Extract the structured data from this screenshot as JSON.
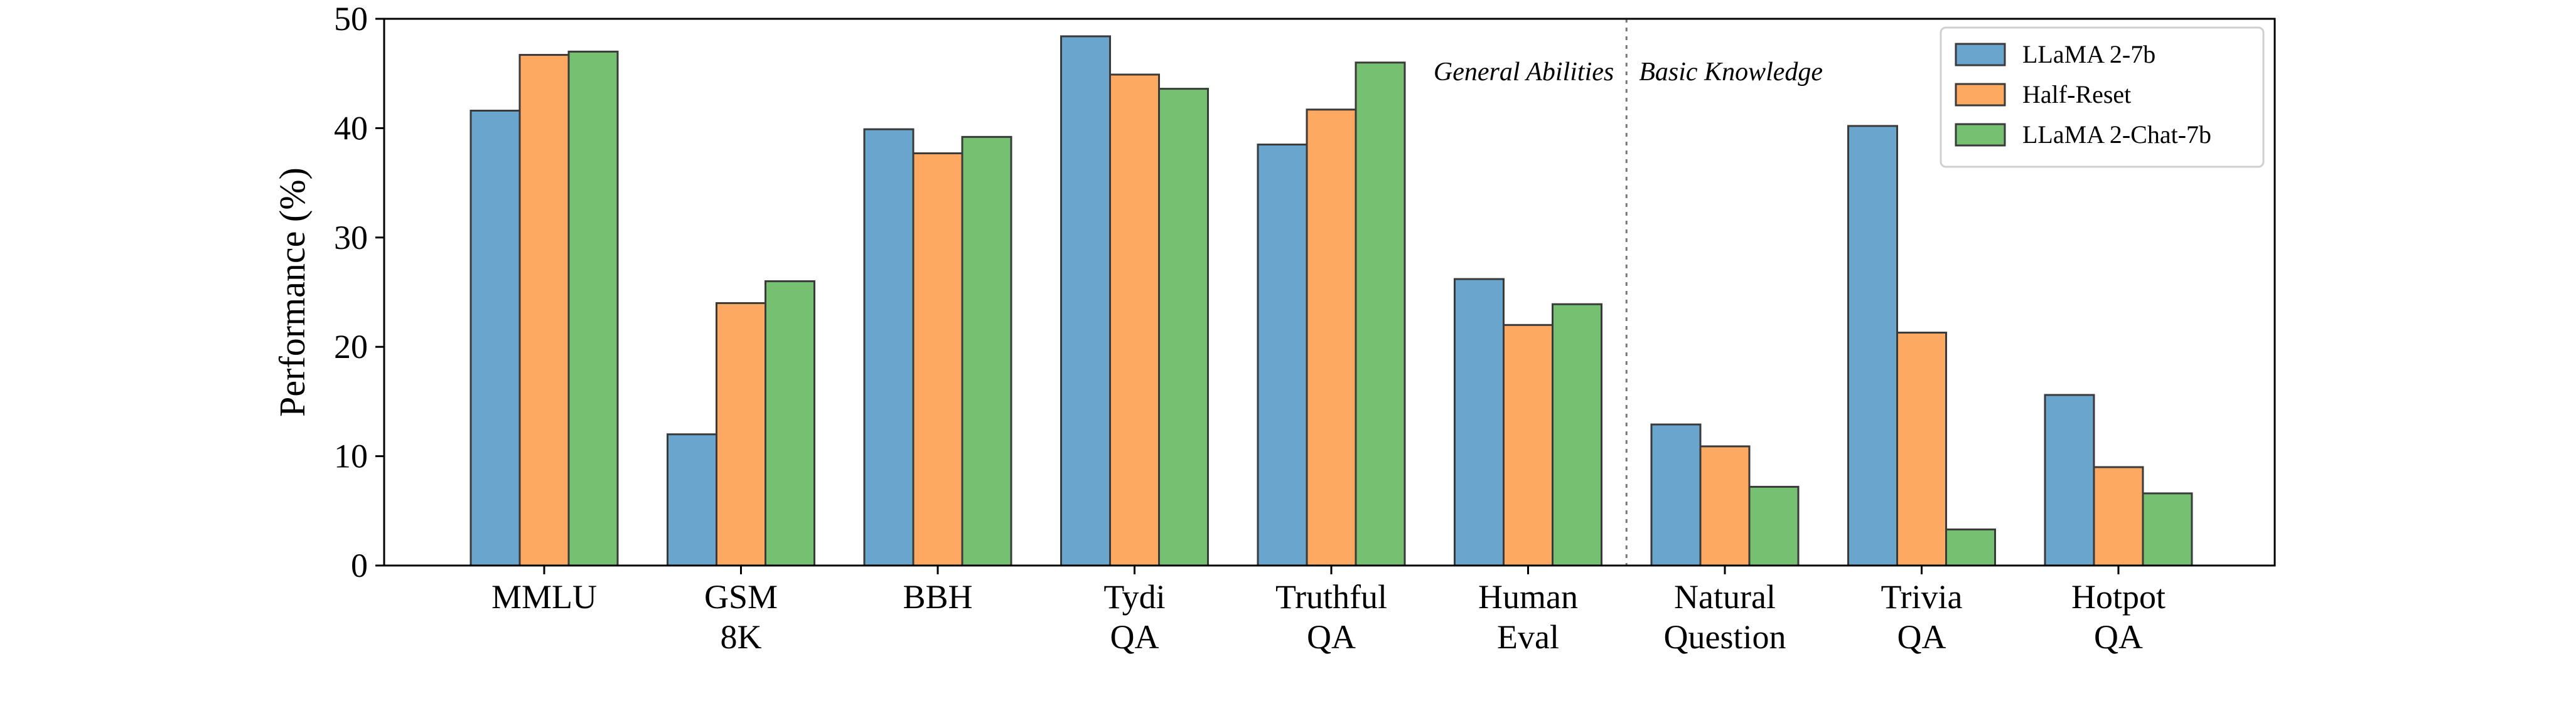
{
  "chart_data": {
    "type": "bar",
    "title": "",
    "xlabel": "",
    "ylabel": "Performance (%)",
    "ylim": [
      0,
      50
    ],
    "yticks": [
      0,
      10,
      20,
      30,
      40,
      50
    ],
    "grid": false,
    "legend_position": "top-right",
    "categories": [
      [
        "MMLU"
      ],
      [
        "GSM",
        "8K"
      ],
      [
        "BBH"
      ],
      [
        "Tydi",
        "QA"
      ],
      [
        "Truthful",
        "QA"
      ],
      [
        "Human",
        "Eval"
      ],
      [
        "Natural",
        "Question"
      ],
      [
        "Trivia",
        "QA"
      ],
      [
        "Hotpot",
        "QA"
      ]
    ],
    "series": [
      {
        "name": "LLaMA 2-7b",
        "color": "#6aa5cd",
        "values": [
          41.6,
          12.0,
          39.9,
          48.4,
          38.5,
          26.2,
          12.9,
          40.2,
          15.6
        ]
      },
      {
        "name": "Half-Reset",
        "color": "#fda962",
        "values": [
          46.7,
          24.0,
          37.7,
          44.9,
          41.7,
          22.0,
          10.9,
          21.3,
          9.0
        ]
      },
      {
        "name": "LLaMA 2-Chat-7b",
        "color": "#75c171",
        "values": [
          47.0,
          26.0,
          39.2,
          43.6,
          46.0,
          23.9,
          7.2,
          3.3,
          6.6
        ]
      }
    ],
    "annotations": {
      "divider_after_category_index": 5,
      "left_label": "General Abilities",
      "right_label": "Basic Knowledge"
    }
  }
}
